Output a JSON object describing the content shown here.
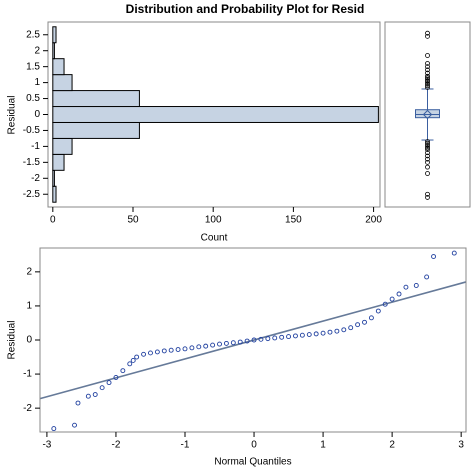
{
  "chart_data": [
    {
      "type": "histogram",
      "title": "Distribution and Probability Plot for Resid",
      "orientation": "horizontal",
      "bins": [
        -2.75,
        -2.25,
        -1.75,
        -1.25,
        -0.75,
        -0.25,
        0.25,
        0.75,
        1.25,
        1.75,
        2.25,
        2.75
      ],
      "values": [
        2,
        1,
        7,
        12,
        54,
        203,
        54,
        12,
        7,
        1,
        2
      ],
      "color": "#c6d3e3",
      "xlabel": "Count",
      "ylabel": "Residual",
      "xlim": [
        -3,
        204
      ],
      "xticks": [
        0,
        50,
        100,
        150,
        200
      ],
      "ylim": [
        -2.9,
        2.9
      ],
      "yticks": [
        -2.5,
        -2,
        -1.5,
        -1,
        -0.5,
        0,
        0.5,
        1,
        1.5,
        2,
        2.5
      ]
    },
    {
      "type": "box",
      "color": "#c6d3e3",
      "ylim": [
        -2.9,
        2.9
      ],
      "q1": -0.1,
      "median": 0.0,
      "q3": 0.15,
      "mean": 0.0,
      "whisker_low": -0.8,
      "whisker_high": 0.8,
      "outliers": [
        0.85,
        0.9,
        0.95,
        1.0,
        1.05,
        1.1,
        1.15,
        1.2,
        1.3,
        1.4,
        1.5,
        1.6,
        1.85,
        2.45,
        2.55,
        -0.85,
        -0.9,
        -0.95,
        -1.0,
        -1.05,
        -1.1,
        -1.2,
        -1.3,
        -1.4,
        -1.5,
        -1.65,
        -1.85,
        -2.5,
        -2.6
      ]
    },
    {
      "type": "scatter",
      "xlabel": "Normal Quantiles",
      "ylabel": "Residual",
      "color": "#1f3f9f",
      "x": [
        -2.9,
        -2.6,
        -2.55,
        -2.4,
        -2.3,
        -2.2,
        -2.1,
        -2.0,
        -1.9,
        -1.8,
        -1.75,
        -1.7,
        -1.6,
        -1.5,
        -1.4,
        -1.3,
        -1.2,
        -1.1,
        -1.0,
        -0.9,
        -0.8,
        -0.7,
        -0.6,
        -0.5,
        -0.4,
        -0.3,
        -0.2,
        -0.1,
        0.0,
        0.1,
        0.2,
        0.3,
        0.4,
        0.5,
        0.6,
        0.7,
        0.8,
        0.9,
        1.0,
        1.1,
        1.2,
        1.3,
        1.4,
        1.5,
        1.6,
        1.7,
        1.8,
        1.9,
        2.0,
        2.1,
        2.2,
        2.35,
        2.5,
        2.6,
        2.9
      ],
      "y": [
        -2.6,
        -2.5,
        -1.85,
        -1.65,
        -1.6,
        -1.4,
        -1.25,
        -1.1,
        -0.9,
        -0.7,
        -0.6,
        -0.5,
        -0.42,
        -0.38,
        -0.35,
        -0.32,
        -0.3,
        -0.28,
        -0.26,
        -0.23,
        -0.2,
        -0.18,
        -0.15,
        -0.12,
        -0.1,
        -0.08,
        -0.06,
        -0.03,
        0.0,
        0.02,
        0.04,
        0.06,
        0.08,
        0.1,
        0.12,
        0.14,
        0.16,
        0.18,
        0.2,
        0.23,
        0.26,
        0.3,
        0.36,
        0.45,
        0.52,
        0.65,
        0.85,
        1.05,
        1.2,
        1.35,
        1.55,
        1.6,
        1.85,
        2.45,
        2.55
      ],
      "ref_line": {
        "intercept": 0.0,
        "slope": 0.555,
        "color": "#667a99"
      },
      "xlim": [
        -3.1,
        3.07
      ],
      "xticks": [
        -3,
        -2,
        -1,
        0,
        1,
        2,
        3
      ],
      "ylim": [
        -2.7,
        2.7
      ],
      "yticks": [
        -2,
        -1,
        0,
        1,
        2
      ]
    }
  ]
}
